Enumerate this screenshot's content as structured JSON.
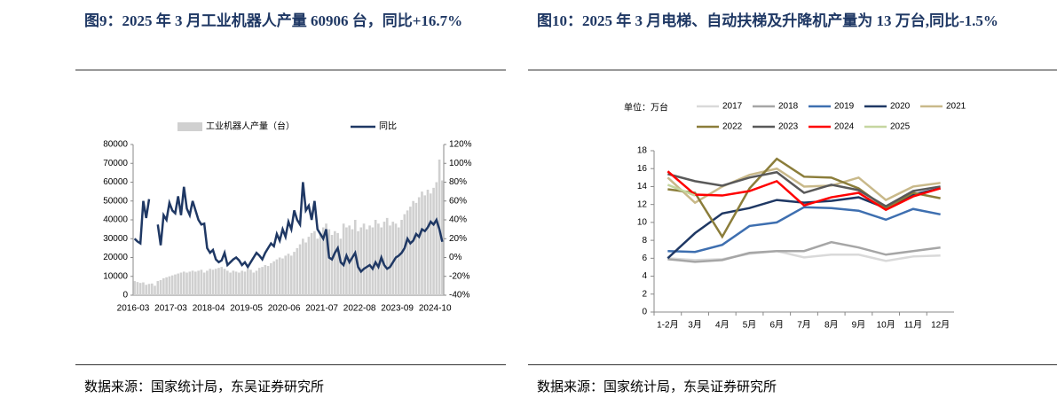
{
  "chart_data": [
    {
      "type": "bar",
      "title": "图9：2025 年 3 月工业机器人产量 60906 台，同比+16.7%",
      "source": "数据来源：国家统计局，东吴证券研究所",
      "categories": [
        "2016-03",
        null,
        null,
        null,
        null,
        null,
        null,
        null,
        null,
        null,
        null,
        null,
        null,
        "2017-03",
        null,
        null,
        null,
        null,
        null,
        null,
        null,
        null,
        null,
        null,
        null,
        null,
        "2018-04",
        null,
        null,
        null,
        null,
        null,
        null,
        null,
        null,
        null,
        null,
        null,
        null,
        "2019-05",
        null,
        null,
        null,
        null,
        null,
        null,
        null,
        null,
        null,
        null,
        null,
        null,
        "2020-06",
        null,
        null,
        null,
        null,
        null,
        null,
        null,
        null,
        null,
        null,
        null,
        null,
        "2021-07",
        null,
        null,
        null,
        null,
        null,
        null,
        null,
        null,
        null,
        null,
        null,
        null,
        "2022-08",
        null,
        null,
        null,
        null,
        null,
        null,
        null,
        null,
        null,
        null,
        null,
        null,
        "2023-09",
        null,
        null,
        null,
        null,
        null,
        null,
        null,
        null,
        null,
        null,
        null,
        null,
        "2024-10",
        null,
        null
      ],
      "series": [
        {
          "name": "工业机器人产量（台）",
          "type": "bar",
          "color": "#d0d0d0",
          "values": [
            7500,
            7000,
            6500,
            6800,
            5500,
            6000,
            6200,
            5000,
            7500,
            8000,
            9000,
            9500,
            10000,
            10500,
            11000,
            11500,
            12000,
            12500,
            12000,
            12500,
            13000,
            12500,
            13000,
            13500,
            12000,
            13000,
            14000,
            13500,
            14000,
            14500,
            15000,
            14000,
            13000,
            12000,
            13000,
            12500,
            12000,
            13000,
            12500,
            14000,
            13500,
            12000,
            13000,
            14500,
            15000,
            16000,
            15500,
            17000,
            18000,
            19000,
            20000,
            19500,
            21000,
            22000,
            21000,
            23000,
            25000,
            27000,
            30000,
            28000,
            31000,
            33000,
            34000,
            30000,
            33000,
            36000,
            38000,
            35000,
            32000,
            34000,
            33000,
            30000,
            38000,
            36000,
            37000,
            35000,
            40000,
            34000,
            36000,
            38000,
            35000,
            37000,
            36000,
            40000,
            38000,
            36000,
            39000,
            41000,
            37000,
            39000,
            38000,
            36000,
            40000,
            43000,
            45000,
            47000,
            50000,
            49000,
            52000,
            55000,
            53000,
            56000,
            54000,
            57000,
            60000,
            72000,
            60906
          ]
        },
        {
          "name": "同比",
          "type": "line",
          "axis": "y2",
          "color": "#1f3864",
          "values": [
            20,
            17,
            15,
            60,
            42,
            62,
            null,
            null,
            35,
            13,
            45,
            40,
            58,
            50,
            47,
            65,
            45,
            75,
            52,
            45,
            60,
            50,
            40,
            35,
            36,
            10,
            5,
            8,
            -2,
            -5,
            -3,
            5,
            -8,
            -5,
            -2,
            0,
            -3,
            -8,
            -5,
            -10,
            -5,
            0,
            5,
            2,
            -2,
            5,
            10,
            15,
            12,
            25,
            18,
            30,
            22,
            38,
            30,
            50,
            40,
            35,
            80,
            50,
            55,
            40,
            60,
            30,
            25,
            20,
            30,
            0,
            -2,
            5,
            10,
            -5,
            -8,
            2,
            -5,
            0,
            5,
            -10,
            -15,
            -12,
            -10,
            -8,
            -12,
            -5,
            -10,
            0,
            -8,
            -12,
            -10,
            -5,
            0,
            2,
            5,
            10,
            20,
            15,
            18,
            25,
            22,
            30,
            28,
            32,
            38,
            35,
            40,
            30,
            16.7
          ]
        }
      ],
      "ylim": [
        0,
        80000
      ],
      "yticks": [
        0,
        10000,
        20000,
        30000,
        40000,
        50000,
        60000,
        70000,
        80000
      ],
      "y2lim": [
        -40,
        120
      ],
      "y2ticks": [
        {
          "value": -40,
          "label": "-40%"
        },
        {
          "value": -20,
          "label": "-20%"
        },
        {
          "value": 0,
          "label": "0%"
        },
        {
          "value": 20,
          "label": "20%"
        },
        {
          "value": 40,
          "label": "40%"
        },
        {
          "value": 60,
          "label": "60%"
        },
        {
          "value": 80,
          "label": "80%"
        },
        {
          "value": 100,
          "label": "100%"
        },
        {
          "value": 120,
          "label": "120%"
        }
      ]
    },
    {
      "type": "line",
      "title": "图10：2025 年 3 月电梯、自动扶梯及升降机产量为 13 万台,同比-1.5%",
      "source": "数据来源：国家统计局，东吴证券研究所",
      "unit": "单位：万台",
      "categories": [
        "1-2月",
        "3月",
        "4月",
        "5月",
        "6月",
        "7月",
        "8月",
        "9月",
        "10月",
        "11月",
        "12月"
      ],
      "series": [
        {
          "name": "2017",
          "color": "#d9d9d9",
          "values": [
            6.0,
            5.8,
            5.9,
            6.5,
            6.8,
            6.1,
            6.4,
            6.4,
            5.7,
            6.2,
            6.3
          ]
        },
        {
          "name": "2018",
          "color": "#a6a6a6",
          "values": [
            5.9,
            5.6,
            5.8,
            6.6,
            6.8,
            6.8,
            7.8,
            7.2,
            6.4,
            6.8,
            7.2
          ]
        },
        {
          "name": "2019",
          "color": "#3e6fb0",
          "values": [
            6.8,
            6.7,
            7.5,
            9.6,
            10.0,
            11.7,
            11.6,
            11.3,
            10.3,
            11.5,
            10.9
          ]
        },
        {
          "name": "2020",
          "color": "#1f3864",
          "values": [
            6.0,
            8.8,
            11.0,
            11.6,
            12.5,
            12.2,
            12.4,
            12.8,
            11.6,
            13.1,
            13.8
          ]
        },
        {
          "name": "2021",
          "color": "#c9b98a",
          "values": [
            15.0,
            12.2,
            14.0,
            15.3,
            16.0,
            14.0,
            14.1,
            15.0,
            12.5,
            14.0,
            14.4
          ]
        },
        {
          "name": "2022",
          "color": "#8b7d3a",
          "values": [
            13.7,
            13.3,
            8.4,
            13.8,
            17.1,
            15.1,
            15.0,
            13.8,
            11.6,
            13.3,
            12.7
          ]
        },
        {
          "name": "2023",
          "color": "#595959",
          "values": [
            15.4,
            14.6,
            14.1,
            15.0,
            15.6,
            13.3,
            14.2,
            13.6,
            11.8,
            13.5,
            14.0
          ]
        },
        {
          "name": "2024",
          "color": "#ff0000",
          "values": [
            15.7,
            13.1,
            13.0,
            13.5,
            14.6,
            11.9,
            12.8,
            13.3,
            11.4,
            12.9,
            13.8
          ]
        },
        {
          "name": "2025",
          "color": "#c5d6a0",
          "values": [
            14.2,
            13.0,
            null,
            null,
            null,
            null,
            null,
            null,
            null,
            null,
            null
          ]
        }
      ],
      "ylim": [
        0,
        18
      ],
      "yticks": [
        0,
        2,
        4,
        6,
        8,
        10,
        12,
        14,
        16,
        18
      ]
    }
  ]
}
